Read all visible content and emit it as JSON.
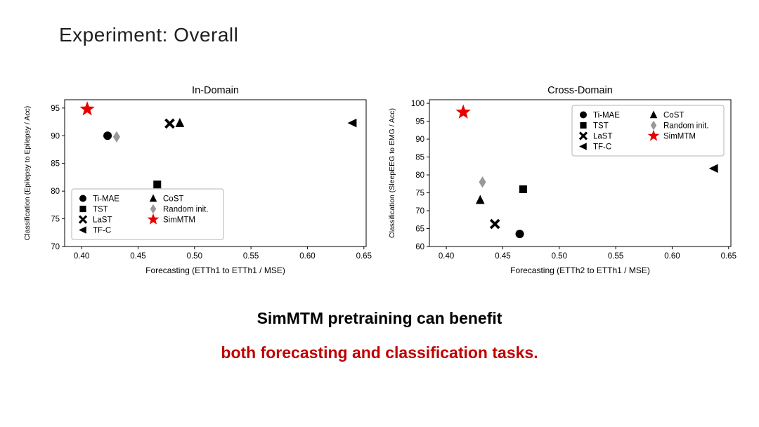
{
  "slide": {
    "title": "Experiment: Overall",
    "caption": {
      "line1": "SimMTM pretraining can benefit",
      "line2": "both forecasting and classification tasks."
    }
  },
  "colors": {
    "title_text": "#1f1f1f",
    "caption_black": "#000000",
    "caption_red": "#c00000",
    "simmtm_red": "#e60000",
    "marker_black": "#000000",
    "random_init_gray": "#999999"
  },
  "chart_data": [
    {
      "type": "scatter",
      "title": "In-Domain",
      "xlabel": "Forecasting (ETTh1 to ETTh1 / MSE)",
      "ylabel": "Classification (Epilepsy to Epilepsy / Acc)",
      "xlim": [
        0.385,
        0.652
      ],
      "ylim": [
        70,
        96.5
      ],
      "xticks": [
        [
          0.4,
          "0.40"
        ],
        [
          0.45,
          "0.45"
        ],
        [
          0.5,
          "0.50"
        ],
        [
          0.55,
          "0.55"
        ],
        [
          0.6,
          "0.60"
        ],
        [
          0.65,
          "0.65"
        ]
      ],
      "yticks": [
        [
          70,
          "70"
        ],
        [
          75,
          "75"
        ],
        [
          80,
          "80"
        ],
        [
          85,
          "85"
        ],
        [
          90,
          "90"
        ],
        [
          95,
          "95"
        ]
      ],
      "grid": false,
      "legend_position": "lower-left",
      "legend_col_split": 4,
      "legend_col_width": 100,
      "series": [
        {
          "name": "Ti-MAE",
          "marker": "circle",
          "color": "#000000",
          "size": 6,
          "points": [
            [
              0.423,
              90.0
            ]
          ]
        },
        {
          "name": "TST",
          "marker": "square",
          "color": "#000000",
          "size": 6,
          "points": [
            [
              0.467,
              81.2
            ]
          ]
        },
        {
          "name": "LaST",
          "marker": "x",
          "color": "#000000",
          "size": 6,
          "points": [
            [
              0.478,
              92.2
            ]
          ]
        },
        {
          "name": "TF-C",
          "marker": "triangle-left",
          "color": "#000000",
          "size": 6,
          "points": [
            [
              0.64,
              92.3
            ]
          ]
        },
        {
          "name": "CoST",
          "marker": "triangle-up",
          "color": "#000000",
          "size": 6,
          "points": [
            [
              0.487,
              92.3
            ]
          ]
        },
        {
          "name": "Random init.",
          "marker": "diamond",
          "color": "#999999",
          "size": 6,
          "points": [
            [
              0.431,
              89.8
            ]
          ]
        },
        {
          "name": "SimMTM",
          "marker": "star",
          "color": "#e60000",
          "size": 7,
          "points": [
            [
              0.405,
              94.8
            ]
          ]
        }
      ]
    },
    {
      "type": "scatter",
      "title": "Cross-Domain",
      "xlabel": "Forecasting (ETTh2 to ETTh1 / MSE)",
      "ylabel": "Classification (SleepEEG to EMG / Acc)",
      "xlim": [
        0.385,
        0.652
      ],
      "ylim": [
        60,
        101
      ],
      "xticks": [
        [
          0.4,
          "0.40"
        ],
        [
          0.45,
          "0.45"
        ],
        [
          0.5,
          "0.50"
        ],
        [
          0.55,
          "0.55"
        ],
        [
          0.6,
          "0.60"
        ],
        [
          0.65,
          "0.65"
        ]
      ],
      "yticks": [
        [
          60,
          "60"
        ],
        [
          65,
          "65"
        ],
        [
          70,
          "70"
        ],
        [
          75,
          "75"
        ],
        [
          80,
          "80"
        ],
        [
          85,
          "85"
        ],
        [
          90,
          "90"
        ],
        [
          95,
          "95"
        ],
        [
          100,
          "100"
        ]
      ],
      "grid": false,
      "legend_position": "upper-right",
      "legend_col_split": 4,
      "legend_col_width": 100,
      "series": [
        {
          "name": "Ti-MAE",
          "marker": "circle",
          "color": "#000000",
          "size": 6,
          "points": [
            [
              0.465,
              63.5
            ]
          ]
        },
        {
          "name": "TST",
          "marker": "square",
          "color": "#000000",
          "size": 6,
          "points": [
            [
              0.468,
              76.0
            ]
          ]
        },
        {
          "name": "LaST",
          "marker": "x",
          "color": "#000000",
          "size": 6,
          "points": [
            [
              0.443,
              66.3
            ]
          ]
        },
        {
          "name": "TF-C",
          "marker": "triangle-left",
          "color": "#000000",
          "size": 6,
          "points": [
            [
              0.637,
              81.8
            ]
          ]
        },
        {
          "name": "CoST",
          "marker": "triangle-up",
          "color": "#000000",
          "size": 6,
          "points": [
            [
              0.43,
              73.0
            ]
          ]
        },
        {
          "name": "Random init.",
          "marker": "diamond",
          "color": "#999999",
          "size": 6,
          "points": [
            [
              0.432,
              78.0
            ]
          ]
        },
        {
          "name": "SimMTM",
          "marker": "star",
          "color": "#e60000",
          "size": 7,
          "points": [
            [
              0.415,
              97.5
            ]
          ]
        }
      ]
    }
  ]
}
